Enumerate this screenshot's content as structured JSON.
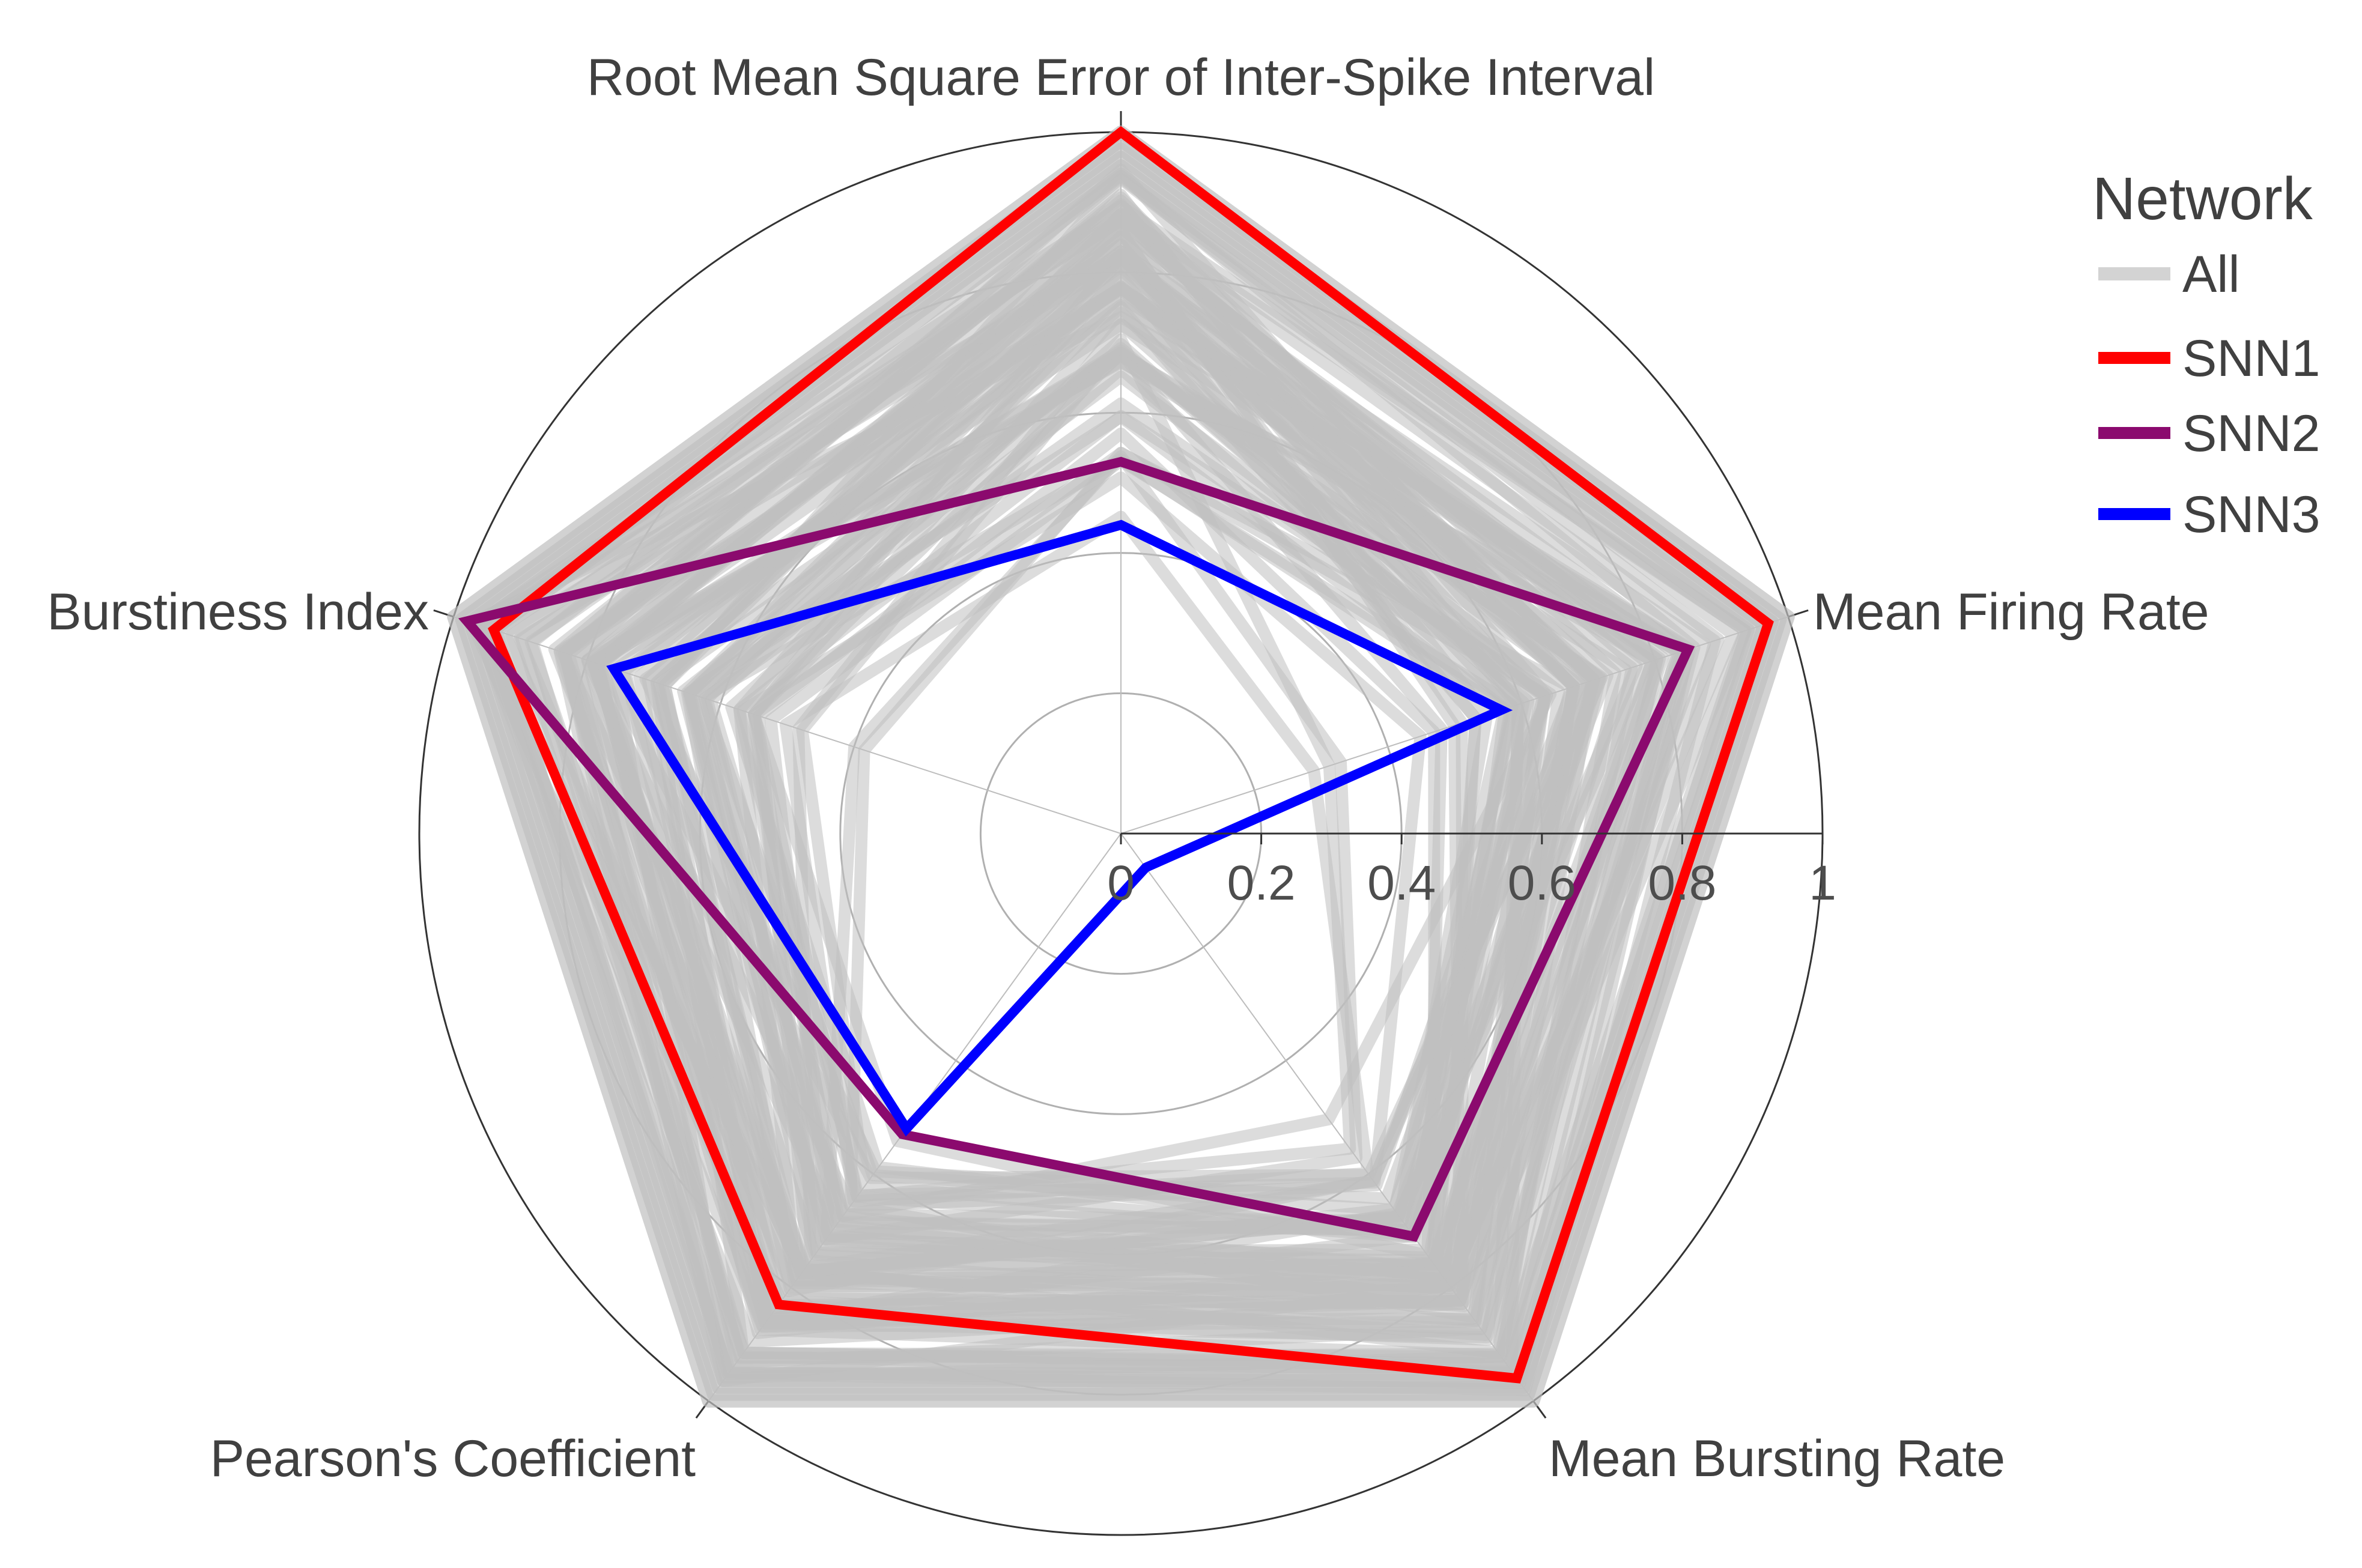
{
  "chart_data": {
    "type": "radar",
    "axes": [
      "Root Mean Square Error of Inter-Spike Interval",
      "Mean Firing Rate",
      "Mean Bursting Rate",
      "Pearson's Coefficient",
      "Burstiness Index"
    ],
    "radial_ticks": [
      "0",
      "0.2",
      "0.4",
      "0.6",
      "0.8",
      "1"
    ],
    "rlim": [
      0,
      1
    ],
    "grid": true,
    "legend": {
      "title": "Network",
      "placement": "top-right",
      "entries": [
        "All",
        "SNN1",
        "SNN2",
        "SNN3"
      ]
    },
    "series": [
      {
        "name": "SNN1",
        "color": "#ff0000",
        "values": [
          1.0,
          0.97,
          0.96,
          0.83,
          0.94
        ]
      },
      {
        "name": "SNN2",
        "color": "#8b0a6e",
        "values": [
          0.53,
          0.85,
          0.71,
          0.53,
          0.98
        ]
      },
      {
        "name": "SNN3",
        "color": "#0000ff",
        "values": [
          0.44,
          0.57,
          0.06,
          0.52,
          0.76
        ]
      }
    ],
    "background_series": {
      "name": "All",
      "color": "#bfbfbf",
      "count": 70,
      "value_ranges": [
        [
          0.3,
          1.0
        ],
        [
          0.05,
          1.0
        ],
        [
          0.3,
          1.0
        ],
        [
          0.35,
          1.0
        ],
        [
          0.15,
          1.0
        ]
      ]
    }
  }
}
